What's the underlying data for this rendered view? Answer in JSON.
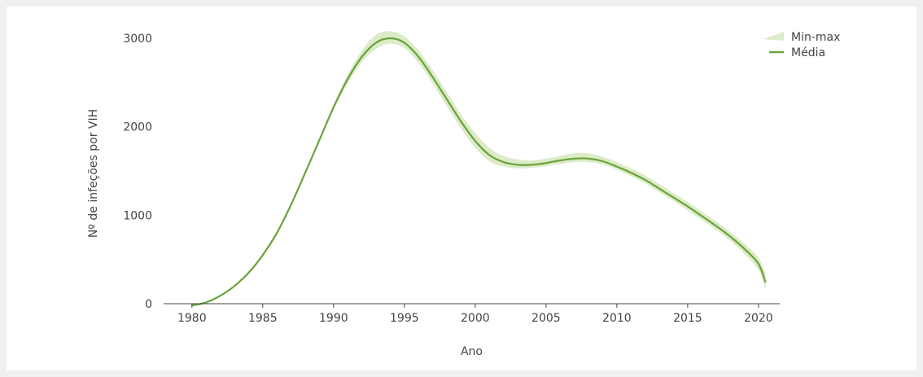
{
  "chart_data": {
    "type": "line",
    "title": "",
    "xlabel": "Ano",
    "ylabel": "Nº de infeções por VIH",
    "xlim": [
      1978,
      2021.5
    ],
    "ylim": [
      0,
      3000
    ],
    "x_ticks": [
      "1980",
      "1985",
      "1990",
      "1995",
      "2000",
      "2005",
      "2010",
      "2015",
      "2020"
    ],
    "y_ticks": [
      "0",
      "1000",
      "2000",
      "3000"
    ],
    "grid": false,
    "legend_position": "top-right",
    "legend": {
      "band": "Min-max",
      "line": "Média"
    },
    "colors": {
      "band": "#dcebc8",
      "line": "#6aa339",
      "axis": "#444444"
    },
    "x": [
      1980,
      1981,
      1982,
      1983,
      1984,
      1985,
      1986,
      1987,
      1988,
      1989,
      1990,
      1991,
      1992,
      1993,
      1994,
      1995,
      1996,
      1997,
      1998,
      1999,
      2000,
      2001,
      2002,
      2003,
      2004,
      2005,
      2006,
      2007,
      2008,
      2009,
      2010,
      2011,
      2012,
      2013,
      2014,
      2015,
      2016,
      2017,
      2018,
      2019,
      2020,
      2020.5
    ],
    "series": [
      {
        "name": "Média",
        "values": [
          -20,
          15,
          90,
          200,
          350,
          550,
          800,
          1120,
          1480,
          1850,
          2220,
          2540,
          2790,
          2950,
          3000,
          2950,
          2790,
          2560,
          2310,
          2060,
          1840,
          1680,
          1600,
          1570,
          1570,
          1590,
          1620,
          1640,
          1640,
          1610,
          1550,
          1480,
          1400,
          1300,
          1200,
          1100,
          990,
          880,
          760,
          620,
          450,
          240
        ]
      },
      {
        "name": "Min-max",
        "min": [
          -20,
          15,
          90,
          200,
          340,
          535,
          785,
          1100,
          1460,
          1830,
          2190,
          2490,
          2730,
          2880,
          2940,
          2890,
          2720,
          2490,
          2230,
          1980,
          1760,
          1610,
          1550,
          1530,
          1535,
          1555,
          1580,
          1600,
          1600,
          1575,
          1515,
          1440,
          1360,
          1260,
          1160,
          1055,
          945,
          835,
          710,
          565,
          380,
          160
        ],
        "max": [
          -20,
          15,
          90,
          200,
          360,
          565,
          815,
          1140,
          1500,
          1870,
          2250,
          2590,
          2860,
          3040,
          3080,
          3020,
          2860,
          2640,
          2390,
          2140,
          1930,
          1760,
          1670,
          1630,
          1620,
          1640,
          1670,
          1700,
          1700,
          1660,
          1600,
          1530,
          1450,
          1350,
          1250,
          1150,
          1040,
          930,
          810,
          680,
          520,
          340
        ]
      }
    ]
  }
}
